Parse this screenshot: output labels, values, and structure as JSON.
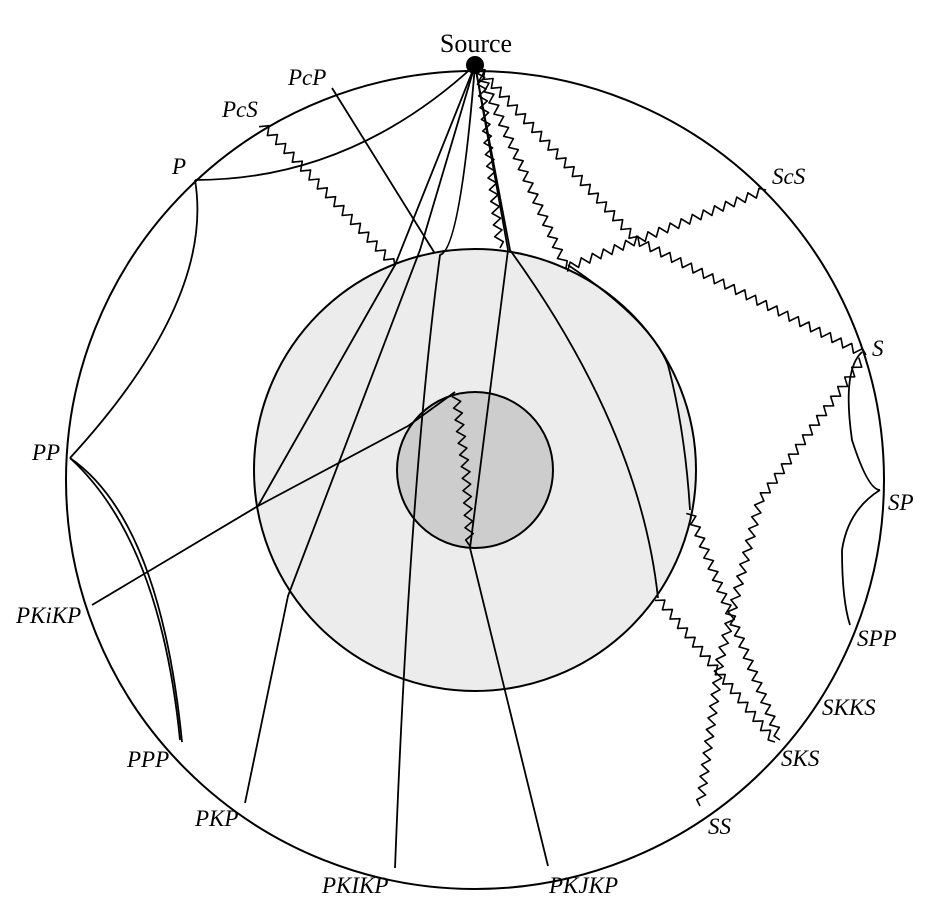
{
  "source": {
    "label": "Source"
  },
  "phases": [
    {
      "id": "P",
      "label": "P",
      "type": "P"
    },
    {
      "id": "PcP",
      "label": "PcP",
      "type": "P"
    },
    {
      "id": "PcS",
      "label": "PcS",
      "type": "mixed"
    },
    {
      "id": "PP",
      "label": "PP",
      "type": "P"
    },
    {
      "id": "PKiKP",
      "label": "PKiKP",
      "type": "P"
    },
    {
      "id": "PPP",
      "label": "PPP",
      "type": "P"
    },
    {
      "id": "PKP",
      "label": "PKP",
      "type": "P"
    },
    {
      "id": "PKIKP",
      "label": "PKIKP",
      "type": "P"
    },
    {
      "id": "PKJKP",
      "label": "PKJKP",
      "type": "mixed"
    },
    {
      "id": "SS",
      "label": "SS",
      "type": "S"
    },
    {
      "id": "SKS",
      "label": "SKS",
      "type": "mixed"
    },
    {
      "id": "SKKS",
      "label": "SKKS",
      "type": "mixed"
    },
    {
      "id": "SPP",
      "label": "SPP",
      "type": "mixed"
    },
    {
      "id": "SP",
      "label": "SP",
      "type": "mixed"
    },
    {
      "id": "S",
      "label": "S",
      "type": "S"
    },
    {
      "id": "ScS",
      "label": "ScS",
      "type": "S"
    }
  ],
  "colors": {
    "mantle": "#ffffff",
    "outer_core": "#ececec",
    "inner_core": "#cdcdcd",
    "line": "#000000"
  }
}
